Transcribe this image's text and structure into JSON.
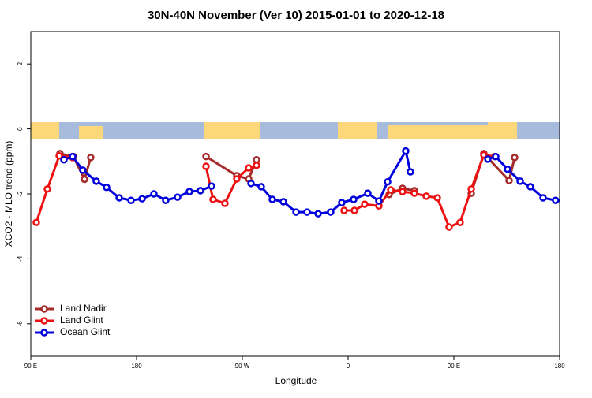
{
  "chart_data": {
    "type": "line",
    "title": "30N-40N November (Ver 10)   2015-01-01 to 2020-12-18",
    "xlabel": "Longitude",
    "ylabel": "XCO2 - MLO trend (ppm)",
    "xlim": [
      -270,
      180
    ],
    "xticks": [
      {
        "value": -270,
        "label": "90 E"
      },
      {
        "value": -180,
        "label": "180"
      },
      {
        "value": -90,
        "label": "90 W"
      },
      0,
      {
        "value": 90,
        "label": "90 E"
      },
      180
    ],
    "ylim": [
      -7,
      3
    ],
    "yticks": [
      2,
      0,
      -2,
      -4,
      -6
    ],
    "legend": "bottom-left",
    "series": [
      {
        "name": "Land Nadir",
        "color": "#a52a2a",
        "x": [
          -245.2,
          -233.7,
          -224.3,
          -219,
          null,
          -120.9,
          -94.7,
          -84.6,
          -77.9,
          null,
          34.9,
          46.3,
          56.4,
          null,
          104.8,
          115.5,
          137,
          141.7
        ],
        "values": [
          -0.76,
          -0.85,
          -1.55,
          -0.88,
          null,
          -0.85,
          -1.44,
          -1.54,
          -0.95,
          null,
          -2.02,
          -1.83,
          -1.9,
          null,
          -1.98,
          -0.76,
          -1.59,
          -0.88
        ]
      },
      {
        "name": "Land Glint",
        "color": "#ee1111",
        "x": [
          -265.3,
          -255.9,
          -245.8,
          -234.4,
          null,
          -120.9,
          -114.9,
          -104.8,
          -94.7,
          -84.6,
          -77.9,
          null,
          -3.4,
          5.4,
          14.1,
          26.2,
          36.3,
          46.3,
          56.4,
          66.5,
          75.9,
          85.9,
          95.3,
          104.8,
          115.5,
          124.9
        ],
        "values": [
          -2.88,
          -1.85,
          -0.83,
          -0.88,
          null,
          -1.15,
          -2.17,
          -2.29,
          -1.54,
          -1.2,
          -1.12,
          null,
          -2.51,
          -2.51,
          -2.32,
          -2.37,
          -1.88,
          -1.93,
          -1.98,
          -2.07,
          -2.12,
          -3.02,
          -2.88,
          -1.85,
          -0.8,
          -0.85
        ]
      },
      {
        "name": "Ocean Glint",
        "color": "#0000dd",
        "x": [
          -241.8,
          -234.4,
          -225.7,
          -214.3,
          -205.5,
          -194.8,
          -184.7,
          -175.3,
          -165.2,
          -155.2,
          -145.1,
          -135,
          -125.6,
          -116.2,
          null,
          -82.6,
          -73.9,
          -64.5,
          -55.1,
          -44.3,
          -34.9,
          -25.5,
          -14.8,
          -5.4,
          4.7,
          16.8,
          26.2,
          33.6,
          49,
          53,
          null,
          118.9,
          125.6,
          135.7,
          146.4,
          155.1,
          165.9,
          176.6
        ],
        "values": [
          -0.95,
          -0.85,
          -1.27,
          -1.61,
          -1.8,
          -2.12,
          -2.2,
          -2.15,
          -2.0,
          -2.2,
          -2.1,
          -1.93,
          -1.9,
          -1.76,
          null,
          -1.68,
          -1.78,
          -2.17,
          -2.24,
          -2.56,
          -2.56,
          -2.61,
          -2.56,
          -2.27,
          -2.17,
          -1.98,
          -2.22,
          -1.63,
          -0.68,
          -1.32,
          null,
          -0.93,
          -0.85,
          -1.24,
          -1.61,
          -1.78,
          -2.12,
          -2.2
        ]
      }
    ]
  }
}
